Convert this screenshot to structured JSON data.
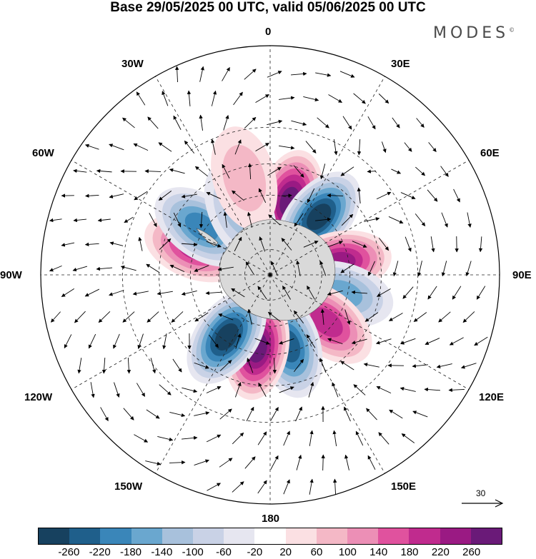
{
  "title": "Base 29/05/2025 00 UTC, valid 05/06/2025 00 UTC",
  "brand": "MODES",
  "brand_mark": "©",
  "labels": {
    "lon_0": "0",
    "lon_30e": "30E",
    "lon_60e": "60E",
    "lon_90e": "90E",
    "lon_120e": "120E",
    "lon_150e": "150E",
    "lon_180": "180",
    "lon_150w": "150W",
    "lon_120w": "120W",
    "lon_90w": "90W",
    "lon_60w": "60W",
    "lon_30w": "30W"
  },
  "reference_vector": "30",
  "colorbar": {
    "colors": [
      "#17415f",
      "#1f5f8b",
      "#3a86b9",
      "#6aa7cf",
      "#a8c1dc",
      "#c9d2e6",
      "#e6e6f0",
      "#ffffff",
      "#fbe0e3",
      "#f4b8c6",
      "#ec8fb6",
      "#e0529e",
      "#c02b8e",
      "#9a1a83",
      "#6a1a78"
    ],
    "ticks": [
      "-260",
      "-220",
      "-180",
      "-140",
      "-100",
      "-60",
      "-20",
      "20",
      "60",
      "100",
      "140",
      "180",
      "220",
      "260"
    ]
  },
  "map": {
    "projection": "south-polar-stereographic",
    "land_color": "#d9d9d9",
    "anomaly_centers": [
      {
        "lon": 15,
        "lat": -47,
        "value": 270
      },
      {
        "lon": 40,
        "lat": -47,
        "value": -270
      },
      {
        "lon": 80,
        "lat": -50,
        "value": 250
      },
      {
        "lon": 105,
        "lat": -48,
        "value": -150
      },
      {
        "lon": 130,
        "lat": -48,
        "value": 180
      },
      {
        "lon": 165,
        "lat": -48,
        "value": -240
      },
      {
        "lon": 190,
        "lat": -48,
        "value": 270
      },
      {
        "lon": 215,
        "lat": -47,
        "value": -260
      },
      {
        "lon": 290,
        "lat": -45,
        "value": 200
      },
      {
        "lon": 305,
        "lat": -43,
        "value": -200
      },
      {
        "lon": 335,
        "lat": -50,
        "value": -120
      },
      {
        "lon": 345,
        "lat": -35,
        "value": 80
      }
    ]
  }
}
